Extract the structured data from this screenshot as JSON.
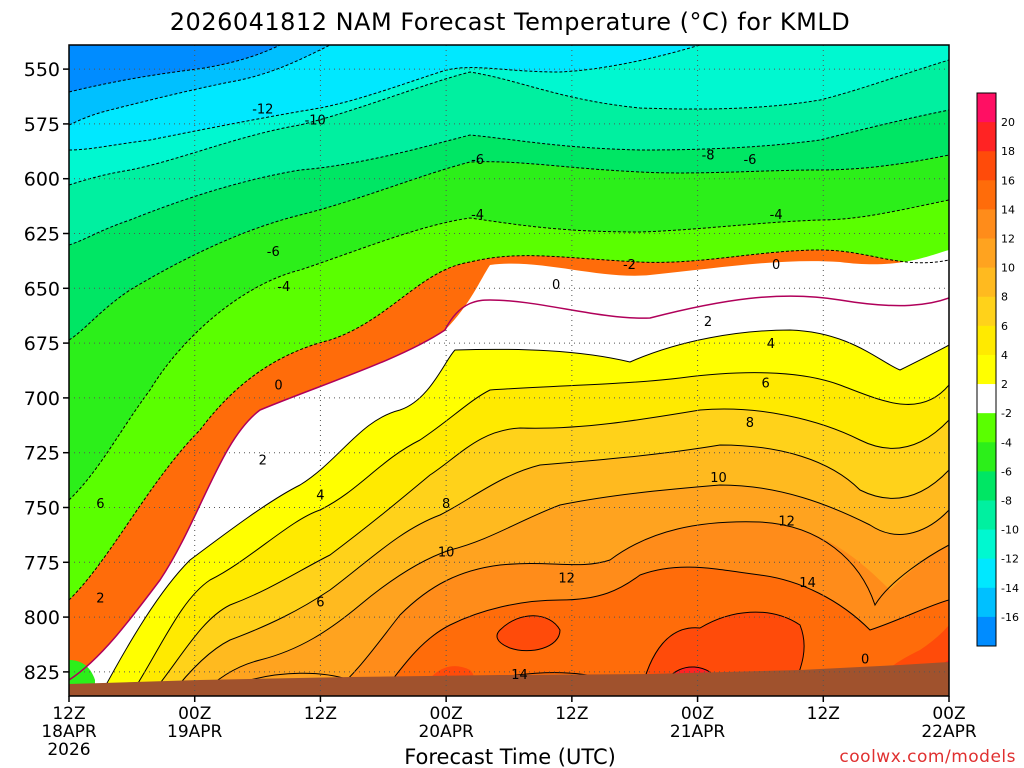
{
  "chart_data": {
    "type": "heatmap",
    "title": "2026041812 NAM Forecast Temperature (°C) for KMLD",
    "xlabel": "Forecast Time (UTC)",
    "ylabel": "",
    "credit": "coolwx.com/models",
    "x_ticks": [
      {
        "label": "12Z",
        "sub": [
          "18APR",
          "2026"
        ],
        "hours": 0
      },
      {
        "label": "00Z",
        "sub": [
          "19APR"
        ],
        "hours": 12
      },
      {
        "label": "12Z",
        "sub": [],
        "hours": 24
      },
      {
        "label": "00Z",
        "sub": [
          "20APR"
        ],
        "hours": 36
      },
      {
        "label": "12Z",
        "sub": [],
        "hours": 48
      },
      {
        "label": "00Z",
        "sub": [
          "21APR"
        ],
        "hours": 60
      },
      {
        "label": "12Z",
        "sub": [],
        "hours": 72
      },
      {
        "label": "00Z",
        "sub": [
          "22APR"
        ],
        "hours": 84
      }
    ],
    "xlim_hours": [
      0,
      84
    ],
    "y_ticks_hPa": [
      550,
      575,
      600,
      625,
      650,
      675,
      700,
      725,
      750,
      775,
      800,
      825
    ],
    "ylim_hPa": [
      539,
      836
    ],
    "grid": true,
    "legend_position": "right",
    "colorbar_labels": [
      20,
      18,
      16,
      14,
      12,
      10,
      8,
      6,
      4,
      2,
      -2,
      -4,
      -6,
      -8,
      -10,
      -12,
      -14,
      -16
    ],
    "colorbar_colors": [
      "#ff0f63",
      "#ff2323",
      "#ff4b0a",
      "#ff6c0a",
      "#ff8c1a",
      "#ffa31f",
      "#ffba1f",
      "#ffd21a",
      "#ffea00",
      "#ffff00",
      "#ffffff",
      "#5aff00",
      "#2cef1a",
      "#00e664",
      "#00f0a0",
      "#00f8d0",
      "#00e8ff",
      "#00c0ff",
      "#008cff"
    ],
    "contour_labels": [
      {
        "label": "-12",
        "hours": 18.5,
        "hPa": 568
      },
      {
        "label": "-10",
        "hours": 23.5,
        "hPa": 573
      },
      {
        "label": "-8",
        "hours": 61,
        "hPa": 589
      },
      {
        "label": "-6",
        "hours": 39,
        "hPa": 591
      },
      {
        "label": "-6",
        "hours": 65,
        "hPa": 591
      },
      {
        "label": "-4",
        "hours": 39,
        "hPa": 616
      },
      {
        "label": "-4",
        "hours": 67.5,
        "hPa": 616
      },
      {
        "label": "-6",
        "hours": 19.5,
        "hPa": 633
      },
      {
        "label": "-4",
        "hours": 20.5,
        "hPa": 649
      },
      {
        "label": "-2",
        "hours": 53.5,
        "hPa": 639
      },
      {
        "label": "0",
        "hours": 46.5,
        "hPa": 648
      },
      {
        "label": "0",
        "hours": 67.5,
        "hPa": 639
      },
      {
        "label": "0",
        "hours": 20,
        "hPa": 694
      },
      {
        "label": "2",
        "hours": 61,
        "hPa": 665
      },
      {
        "label": "4",
        "hours": 67,
        "hPa": 675
      },
      {
        "label": "6",
        "hours": 66.5,
        "hPa": 693
      },
      {
        "label": "8",
        "hours": 65,
        "hPa": 711
      },
      {
        "label": "2",
        "hours": 18.5,
        "hPa": 728
      },
      {
        "label": "4",
        "hours": 24,
        "hPa": 744
      },
      {
        "label": "8",
        "hours": 36,
        "hPa": 748
      },
      {
        "label": "10",
        "hours": 62,
        "hPa": 736
      },
      {
        "label": "12",
        "hours": 68.5,
        "hPa": 756
      },
      {
        "label": "10",
        "hours": 36,
        "hPa": 770
      },
      {
        "label": "12",
        "hours": 47.5,
        "hPa": 782
      },
      {
        "label": "14",
        "hours": 70.5,
        "hPa": 784
      },
      {
        "label": "6",
        "hours": 24,
        "hPa": 793
      },
      {
        "label": "6",
        "hours": 3,
        "hPa": 748
      },
      {
        "label": "2",
        "hours": 3,
        "hPa": 791
      },
      {
        "label": "14",
        "hours": 43,
        "hPa": 826
      },
      {
        "label": "0",
        "hours": 76,
        "hPa": 819
      }
    ]
  }
}
